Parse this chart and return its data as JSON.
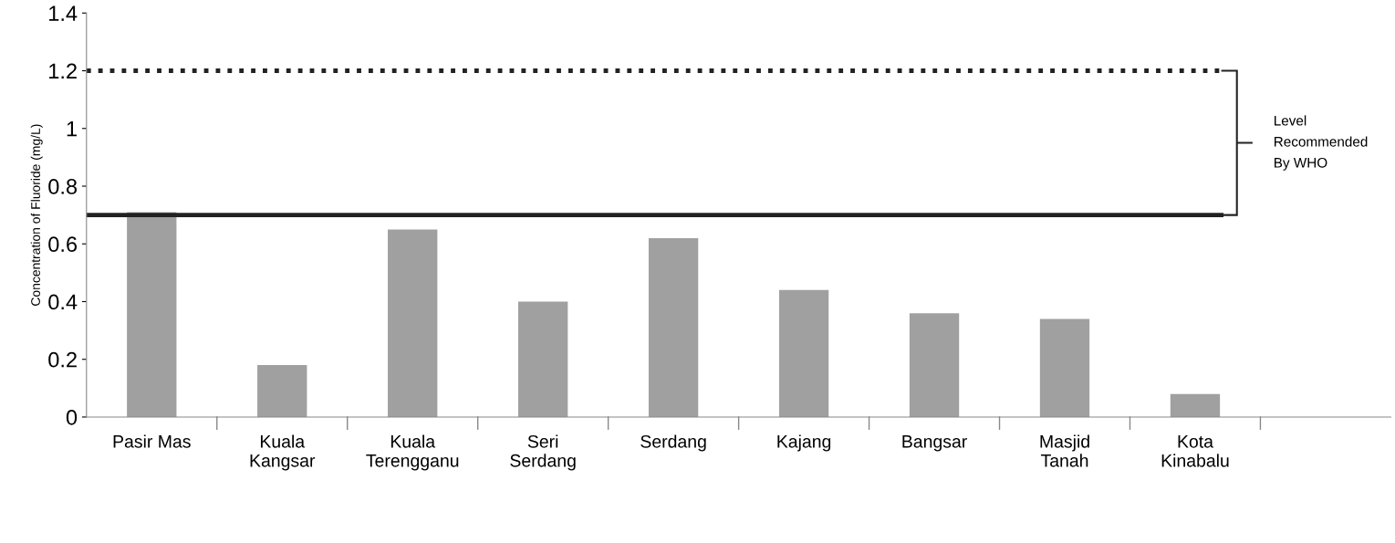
{
  "chart_data": {
    "type": "bar",
    "ylabel": "Concentration of Fluoride (mg/L)",
    "categories": [
      "Pasir Mas",
      "Kuala\nKangsar",
      "Kuala\nTerengganu",
      "Seri\nSerdang",
      "Serdang",
      "Kajang",
      "Bangsar",
      "Masjid\nTanah",
      "Kota\nKinabalu",
      null
    ],
    "values": [
      0.71,
      0.18,
      0.65,
      0.4,
      0.62,
      0.44,
      0.36,
      0.34,
      0.08,
      null
    ],
    "color": "#a0a0a0",
    "ylim": [
      0,
      1.4
    ],
    "yticks": [
      0,
      0.2,
      0.4,
      0.6,
      0.8,
      1,
      1.2,
      1.4
    ],
    "ref_lines": [
      {
        "axis": "y",
        "value": 1.2,
        "color": "#222222",
        "line_style": "dotted"
      },
      {
        "axis": "y",
        "value": 0.7,
        "color": "#222222",
        "line_style": "solid"
      }
    ],
    "annotations": [
      "Level\nRecommended\nBy WHO"
    ],
    "grid": false,
    "legend": false
  }
}
